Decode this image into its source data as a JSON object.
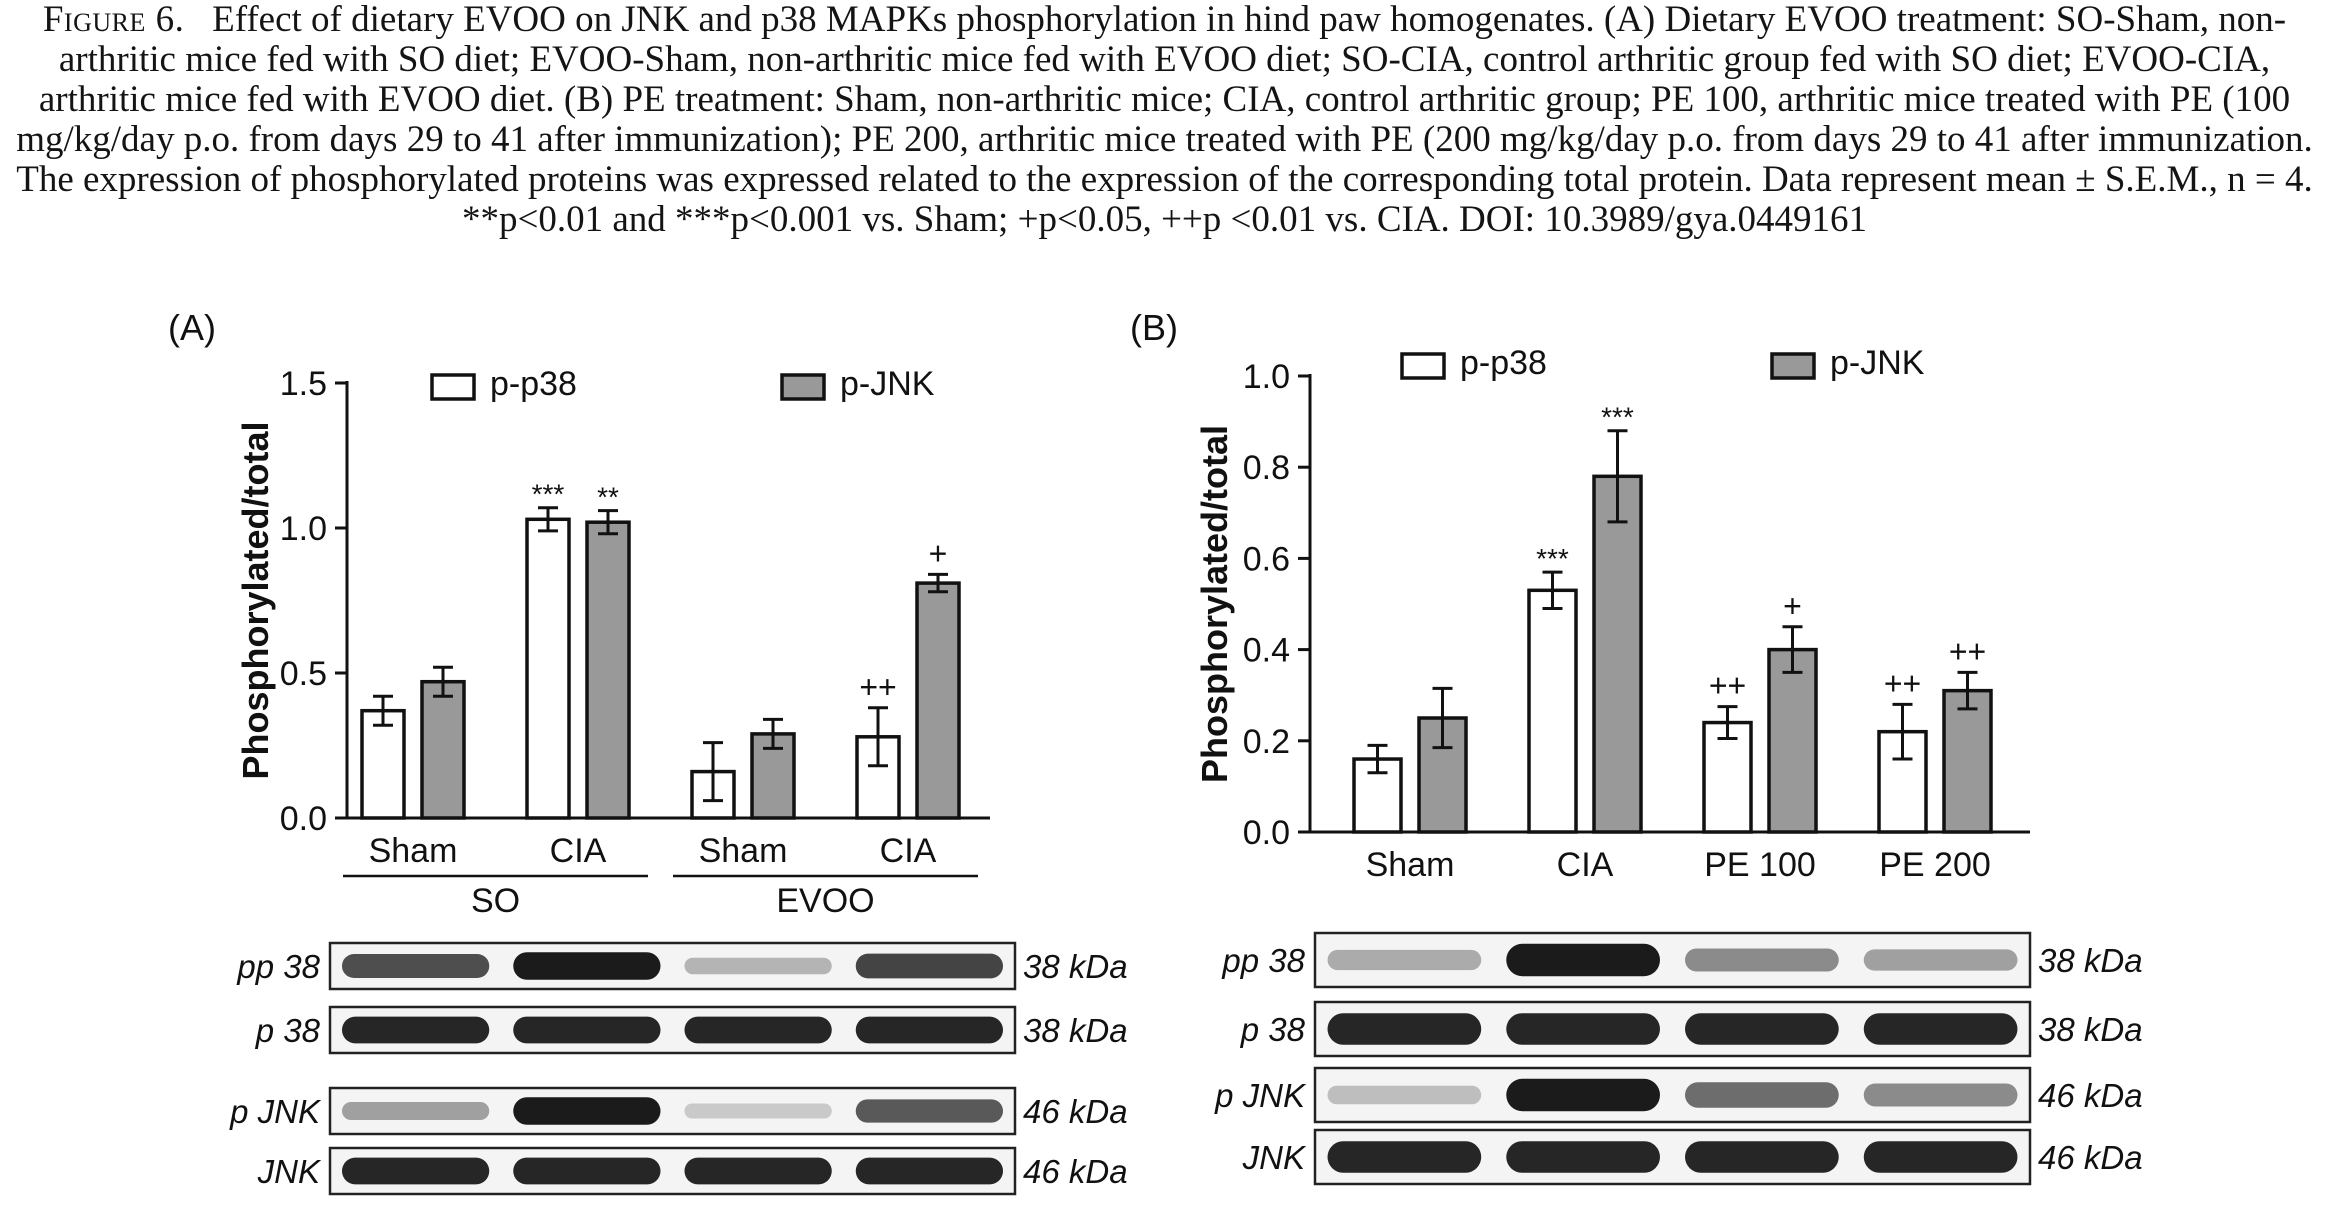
{
  "caption": {
    "label": "Figure 6.",
    "text": "Effect of dietary EVOO on JNK and p38 MAPKs phosphorylation in hind paw homogenates. (A) Dietary EVOO treatment: SO-Sham, non-arthritic mice fed with SO diet; EVOO-Sham, non-arthritic mice fed with EVOO diet; SO-CIA, control arthritic group fed with SO diet; EVOO-CIA, arthritic mice fed with EVOO diet. (B) PE treatment: Sham, non-arthritic mice; CIA, control arthritic group; PE 100, arthritic mice treated with PE (100 mg/kg/day p.o. from days 29 to 41 after immunization); PE 200, arthritic mice treated with PE (200 mg/kg/day p.o. from days 29 to 41 after immunization. The expression of phosphorylated proteins was expressed related to the expression of the corresponding total protein. Data represent mean ± S.E.M., n = 4. **p<0.01 and ***p<0.001 vs. Sham; +p<0.05, ++p <0.01 vs. CIA. DOI: 10.3989/gya.0449161"
  },
  "chart_data": [
    {
      "panel": "(A)",
      "type": "bar",
      "ylabel": "Phosphorylated/total",
      "xlabel": "",
      "ylim": [
        0,
        1.5
      ],
      "yticks": [
        "0.0",
        "0.5",
        "1.0",
        "1.5"
      ],
      "yticks_values": [
        0,
        0.5,
        1.0,
        1.5
      ],
      "categories": [
        "Sham",
        "CIA",
        "Sham",
        "CIA"
      ],
      "groups": [
        {
          "label": "SO",
          "categories": [
            0,
            1
          ]
        },
        {
          "label": "EVOO",
          "categories": [
            2,
            3
          ]
        }
      ],
      "series": [
        {
          "name": "p-p38",
          "color": "#ffffff",
          "values": [
            0.37,
            1.03,
            0.16,
            0.28
          ],
          "errors": [
            0.05,
            0.04,
            0.1,
            0.1
          ],
          "annotations": [
            "",
            "***",
            "",
            "++"
          ]
        },
        {
          "name": "p-JNK",
          "color": "#999999",
          "values": [
            0.47,
            1.02,
            0.29,
            0.81
          ],
          "errors": [
            0.05,
            0.04,
            0.05,
            0.03
          ],
          "annotations": [
            "",
            "**",
            "",
            "+"
          ]
        }
      ],
      "legend_position": "top",
      "blots": {
        "rows": [
          {
            "label": "pp 38",
            "kda": "38 kDa",
            "intensity": [
              0.75,
              1.0,
              0.25,
              0.8
            ]
          },
          {
            "label": "p 38",
            "kda": "38 kDa",
            "intensity": [
              0.95,
              0.95,
              0.95,
              0.95
            ]
          },
          {
            "label": "p JNK",
            "kda": "46 kDa",
            "intensity": [
              0.35,
              1.0,
              0.15,
              0.7
            ]
          },
          {
            "label": "JNK",
            "kda": "46 kDa",
            "intensity": [
              0.95,
              0.95,
              0.95,
              0.95
            ]
          }
        ]
      }
    },
    {
      "panel": "(B)",
      "type": "bar",
      "ylabel": "Phosphorylated/total",
      "xlabel": "",
      "ylim": [
        0,
        1.0
      ],
      "yticks": [
        "0.0",
        "0.2",
        "0.4",
        "0.6",
        "0.8",
        "1.0"
      ],
      "yticks_values": [
        0,
        0.2,
        0.4,
        0.6,
        0.8,
        1.0
      ],
      "categories": [
        "Sham",
        "CIA",
        "PE 100",
        "PE 200"
      ],
      "groups": [],
      "series": [
        {
          "name": "p-p38",
          "color": "#ffffff",
          "values": [
            0.16,
            0.53,
            0.24,
            0.22
          ],
          "errors": [
            0.03,
            0.04,
            0.035,
            0.06
          ],
          "annotations": [
            "",
            "***",
            "++",
            "++"
          ]
        },
        {
          "name": "p-JNK",
          "color": "#999999",
          "values": [
            0.25,
            0.78,
            0.4,
            0.31
          ],
          "errors": [
            0.065,
            0.1,
            0.05,
            0.04
          ],
          "annotations": [
            "",
            "***",
            "+",
            "++"
          ]
        }
      ],
      "legend_position": "top",
      "blots": {
        "rows": [
          {
            "label": "pp 38",
            "kda": "38 kDa",
            "intensity": [
              0.3,
              1.0,
              0.45,
              0.35
            ]
          },
          {
            "label": "p 38",
            "kda": "38 kDa",
            "intensity": [
              0.95,
              0.95,
              0.95,
              0.95
            ]
          },
          {
            "label": "p JNK",
            "kda": "46 kDa",
            "intensity": [
              0.2,
              1.0,
              0.6,
              0.45
            ]
          },
          {
            "label": "JNK",
            "kda": "46 kDa",
            "intensity": [
              0.95,
              0.95,
              0.95,
              0.95
            ]
          }
        ]
      }
    }
  ]
}
